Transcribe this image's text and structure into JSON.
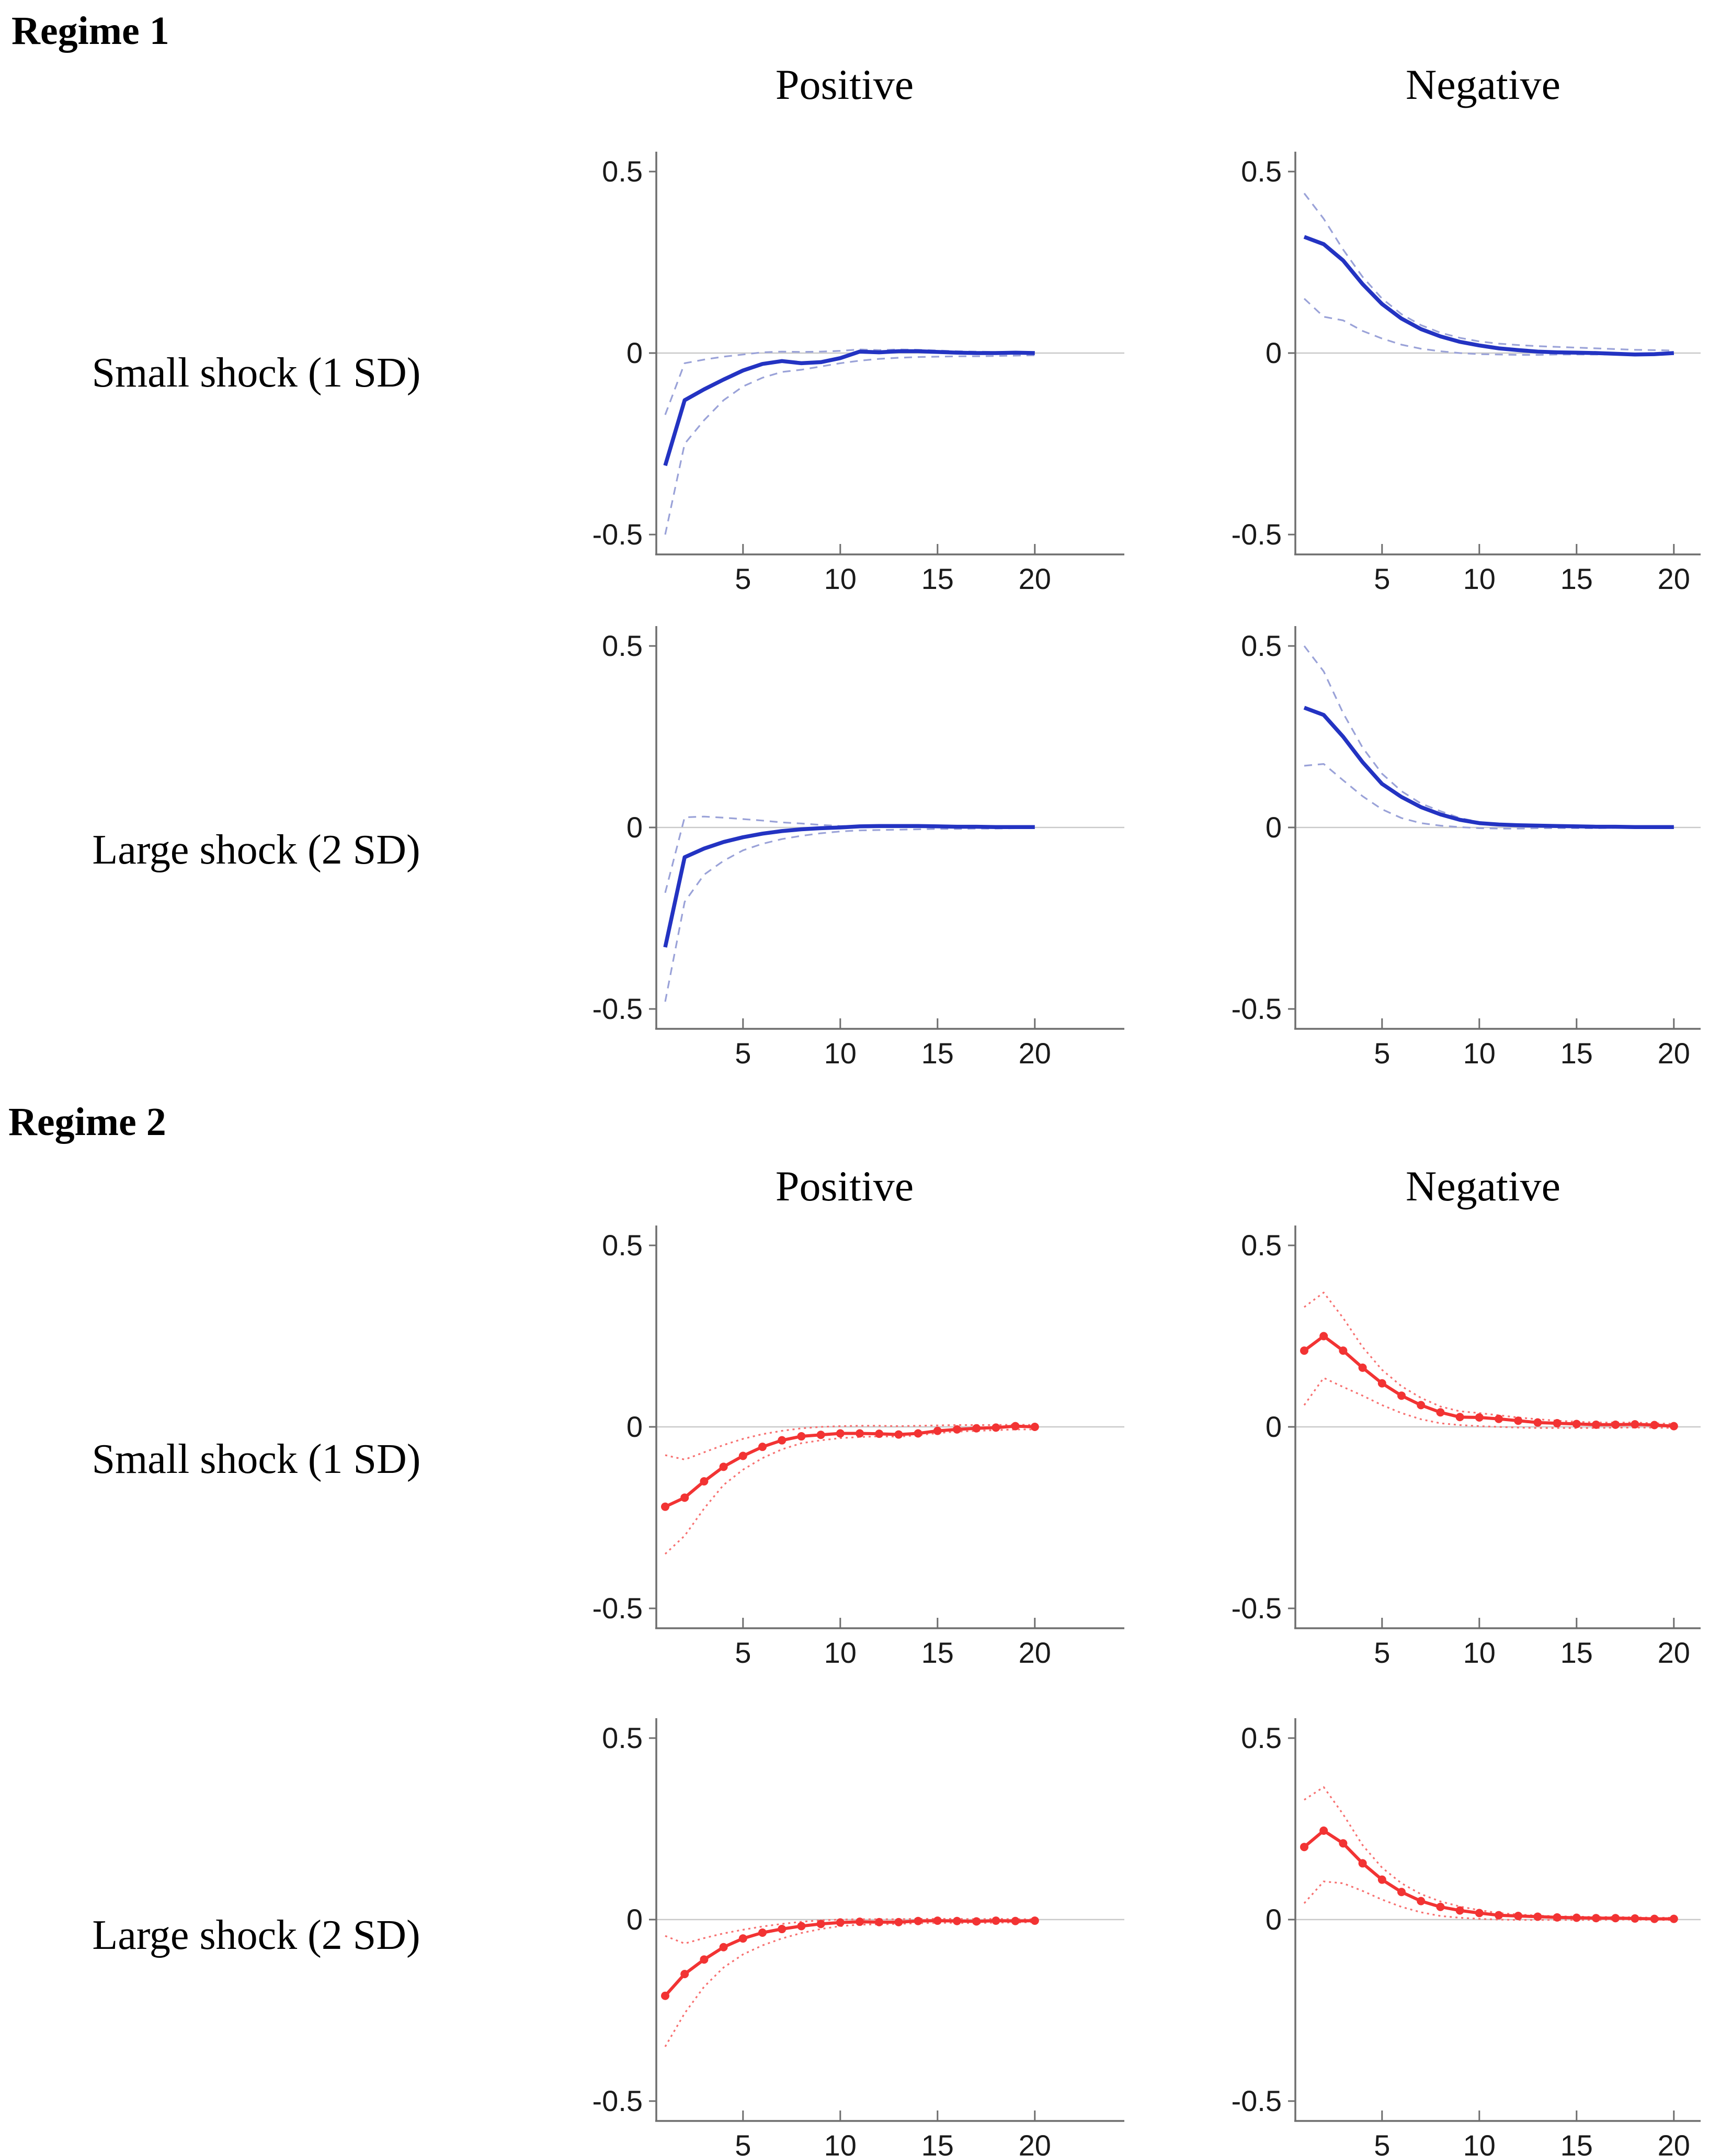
{
  "figure": {
    "sections": [
      {
        "label": "Regime 1"
      },
      {
        "label": "Regime 2"
      }
    ],
    "column_titles": {
      "positive": "Positive",
      "negative": "Negative"
    },
    "row_labels": {
      "small": "Small shock (1 SD)",
      "large": "Large shock (2 SD)"
    }
  },
  "colors": {
    "background": "#ffffff",
    "regime1_line": "#2333c2",
    "regime1_band": "#9aa2d8",
    "regime2_line": "#f23333",
    "regime2_band": "#f77070",
    "axis": "#6e6e6e",
    "zero_line": "#c9c9c9",
    "tick_text": "#1a1a1a",
    "text": "#000000"
  },
  "axes": {
    "ylim": [
      -0.55,
      0.55
    ],
    "xlim": [
      1,
      21.5
    ],
    "grid": "horizontal-zero-line-only",
    "legend": "none",
    "y_ticks": [
      {
        "v": 0.5,
        "label": "0.5"
      },
      {
        "v": 0,
        "label": "0"
      },
      {
        "v": -0.5,
        "label": "-0.5"
      }
    ],
    "x_ticks": [
      {
        "v": 5,
        "label": "5"
      },
      {
        "v": 10,
        "label": "10"
      },
      {
        "v": 15,
        "label": "15"
      },
      {
        "v": 20,
        "label": "20"
      }
    ]
  },
  "chart_data": [
    {
      "id": "regime1-small-positive",
      "type": "line",
      "regime": "Regime 1",
      "shock": "Small shock (1 SD)",
      "direction": "Positive",
      "palette": "regime1",
      "markers": false,
      "band_style": "dashed",
      "x": [
        1,
        2,
        3,
        4,
        5,
        6,
        7,
        8,
        9,
        10,
        11,
        12,
        13,
        14,
        15,
        16,
        17,
        18,
        19,
        20
      ],
      "series": [
        {
          "name": "impulse response",
          "role": "main",
          "values": [
            -0.31,
            -0.13,
            -0.1,
            -0.073,
            -0.048,
            -0.03,
            -0.022,
            -0.028,
            -0.025,
            -0.014,
            0.004,
            0.002,
            0.005,
            0.005,
            0.003,
            0.001,
            0.0,
            0.0,
            0.001,
            0.0
          ]
        },
        {
          "name": "upper confidence band",
          "role": "band",
          "values": [
            -0.17,
            -0.028,
            -0.018,
            -0.01,
            -0.004,
            0.002,
            0.004,
            0.003,
            0.004,
            0.006,
            0.01,
            0.008,
            0.01,
            0.009,
            0.007,
            0.005,
            0.004,
            0.003,
            0.003,
            0.002
          ]
        },
        {
          "name": "lower confidence band",
          "role": "band",
          "values": [
            -0.5,
            -0.25,
            -0.185,
            -0.13,
            -0.092,
            -0.068,
            -0.052,
            -0.046,
            -0.037,
            -0.028,
            -0.021,
            -0.016,
            -0.013,
            -0.011,
            -0.01,
            -0.009,
            -0.009,
            -0.008,
            -0.007,
            -0.006
          ]
        }
      ]
    },
    {
      "id": "regime1-small-negative",
      "type": "line",
      "regime": "Regime 1",
      "shock": "Small shock (1 SD)",
      "direction": "Negative",
      "palette": "regime1",
      "markers": false,
      "band_style": "dashed",
      "x": [
        1,
        2,
        3,
        4,
        5,
        6,
        7,
        8,
        9,
        10,
        11,
        12,
        13,
        14,
        15,
        16,
        17,
        18,
        19,
        20
      ],
      "series": [
        {
          "name": "impulse response",
          "role": "main",
          "values": [
            0.32,
            0.3,
            0.255,
            0.19,
            0.135,
            0.095,
            0.066,
            0.046,
            0.031,
            0.021,
            0.013,
            0.008,
            0.004,
            0.002,
            0.001,
            0.0,
            -0.002,
            -0.004,
            -0.003,
            0.0
          ]
        },
        {
          "name": "upper confidence band",
          "role": "band",
          "values": [
            0.44,
            0.37,
            0.285,
            0.21,
            0.15,
            0.107,
            0.077,
            0.056,
            0.042,
            0.032,
            0.026,
            0.022,
            0.019,
            0.017,
            0.015,
            0.013,
            0.011,
            0.009,
            0.008,
            0.007
          ]
        },
        {
          "name": "lower confidence band",
          "role": "band",
          "values": [
            0.15,
            0.1,
            0.09,
            0.061,
            0.04,
            0.023,
            0.012,
            0.005,
            0.0,
            -0.003,
            -0.004,
            -0.005,
            -0.005,
            -0.004,
            -0.004,
            -0.004,
            -0.004,
            -0.005,
            -0.004,
            -0.002
          ]
        }
      ]
    },
    {
      "id": "regime1-large-positive",
      "type": "line",
      "regime": "Regime 1",
      "shock": "Large shock (2 SD)",
      "direction": "Positive",
      "palette": "regime1",
      "markers": false,
      "band_style": "dashed",
      "x": [
        1,
        2,
        3,
        4,
        5,
        6,
        7,
        8,
        9,
        10,
        11,
        12,
        13,
        14,
        15,
        16,
        17,
        18,
        19,
        20
      ],
      "series": [
        {
          "name": "impulse response",
          "role": "main",
          "values": [
            -0.33,
            -0.082,
            -0.058,
            -0.04,
            -0.027,
            -0.017,
            -0.01,
            -0.005,
            -0.002,
            0.0,
            0.003,
            0.004,
            0.004,
            0.004,
            0.003,
            0.002,
            0.002,
            0.001,
            0.001,
            0.001
          ]
        },
        {
          "name": "upper confidence band",
          "role": "band",
          "values": [
            -0.18,
            0.028,
            0.03,
            0.027,
            0.023,
            0.019,
            0.014,
            0.011,
            0.007,
            0.004,
            0.004,
            0.003,
            0.003,
            0.003,
            0.002,
            0.002,
            0.002,
            0.001,
            0.001,
            0.001
          ]
        },
        {
          "name": "lower confidence band",
          "role": "band",
          "values": [
            -0.48,
            -0.205,
            -0.13,
            -0.092,
            -0.063,
            -0.045,
            -0.032,
            -0.023,
            -0.016,
            -0.011,
            -0.008,
            -0.007,
            -0.006,
            -0.005,
            -0.004,
            -0.004,
            -0.003,
            -0.003,
            -0.002,
            -0.002
          ]
        }
      ]
    },
    {
      "id": "regime1-large-negative",
      "type": "line",
      "regime": "Regime 1",
      "shock": "Large shock (2 SD)",
      "direction": "Negative",
      "palette": "regime1",
      "markers": false,
      "band_style": "dashed",
      "x": [
        1,
        2,
        3,
        4,
        5,
        6,
        7,
        8,
        9,
        10,
        11,
        12,
        13,
        14,
        15,
        16,
        17,
        18,
        19,
        20
      ],
      "series": [
        {
          "name": "impulse response",
          "role": "main",
          "values": [
            0.33,
            0.31,
            0.25,
            0.18,
            0.12,
            0.084,
            0.056,
            0.036,
            0.021,
            0.012,
            0.008,
            0.006,
            0.005,
            0.004,
            0.003,
            0.002,
            0.002,
            0.001,
            0.001,
            0.001
          ]
        },
        {
          "name": "upper confidence band",
          "role": "band",
          "values": [
            0.5,
            0.43,
            0.315,
            0.22,
            0.148,
            0.1,
            0.066,
            0.045,
            0.026,
            0.015,
            0.01,
            0.008,
            0.006,
            0.005,
            0.004,
            0.004,
            0.003,
            0.003,
            0.002,
            0.002
          ]
        },
        {
          "name": "lower confidence band",
          "role": "band",
          "values": [
            0.17,
            0.175,
            0.13,
            0.086,
            0.05,
            0.026,
            0.012,
            0.005,
            0.001,
            -0.002,
            -0.003,
            -0.003,
            -0.002,
            -0.002,
            -0.002,
            -0.002,
            -0.001,
            -0.001,
            -0.001,
            -0.001
          ]
        }
      ]
    },
    {
      "id": "regime2-small-positive",
      "type": "line",
      "regime": "Regime 2",
      "shock": "Small shock (1 SD)",
      "direction": "Positive",
      "palette": "regime2",
      "markers": true,
      "band_style": "dotted",
      "x": [
        1,
        2,
        3,
        4,
        5,
        6,
        7,
        8,
        9,
        10,
        11,
        12,
        13,
        14,
        15,
        16,
        17,
        18,
        19,
        20
      ],
      "series": [
        {
          "name": "impulse response",
          "role": "main",
          "values": [
            -0.22,
            -0.195,
            -0.15,
            -0.11,
            -0.08,
            -0.055,
            -0.037,
            -0.026,
            -0.022,
            -0.018,
            -0.018,
            -0.019,
            -0.021,
            -0.018,
            -0.011,
            -0.007,
            -0.004,
            -0.002,
            0.002,
            0.0
          ]
        },
        {
          "name": "upper confidence band",
          "role": "band",
          "values": [
            -0.078,
            -0.09,
            -0.07,
            -0.05,
            -0.033,
            -0.02,
            -0.011,
            -0.004,
            0.0,
            0.002,
            0.003,
            0.003,
            0.002,
            0.003,
            0.004,
            0.005,
            0.005,
            0.005,
            0.006,
            0.005
          ]
        },
        {
          "name": "lower confidence band",
          "role": "band",
          "values": [
            -0.35,
            -0.3,
            -0.225,
            -0.16,
            -0.118,
            -0.086,
            -0.062,
            -0.045,
            -0.037,
            -0.031,
            -0.028,
            -0.026,
            -0.027,
            -0.023,
            -0.017,
            -0.013,
            -0.011,
            -0.009,
            -0.007,
            -0.007
          ]
        }
      ]
    },
    {
      "id": "regime2-small-negative",
      "type": "line",
      "regime": "Regime 2",
      "shock": "Small shock (1 SD)",
      "direction": "Negative",
      "palette": "regime2",
      "markers": true,
      "band_style": "dotted",
      "x": [
        1,
        2,
        3,
        4,
        5,
        6,
        7,
        8,
        9,
        10,
        11,
        12,
        13,
        14,
        15,
        16,
        17,
        18,
        19,
        20
      ],
      "series": [
        {
          "name": "impulse response",
          "role": "main",
          "values": [
            0.21,
            0.25,
            0.21,
            0.163,
            0.12,
            0.086,
            0.06,
            0.04,
            0.027,
            0.026,
            0.022,
            0.017,
            0.012,
            0.01,
            0.008,
            0.006,
            0.006,
            0.007,
            0.005,
            0.002
          ]
        },
        {
          "name": "upper confidence band",
          "role": "band",
          "values": [
            0.33,
            0.37,
            0.3,
            0.22,
            0.157,
            0.112,
            0.08,
            0.056,
            0.043,
            0.038,
            0.032,
            0.026,
            0.021,
            0.017,
            0.014,
            0.012,
            0.012,
            0.012,
            0.01,
            0.008
          ]
        },
        {
          "name": "lower confidence band",
          "role": "band",
          "values": [
            0.06,
            0.135,
            0.11,
            0.086,
            0.06,
            0.038,
            0.021,
            0.01,
            0.005,
            0.002,
            0.0,
            -0.002,
            -0.003,
            -0.003,
            -0.003,
            -0.003,
            -0.002,
            -0.002,
            -0.002,
            -0.003
          ]
        }
      ]
    },
    {
      "id": "regime2-large-positive",
      "type": "line",
      "regime": "Regime 2",
      "shock": "Large shock (2 SD)",
      "direction": "Positive",
      "palette": "regime2",
      "markers": true,
      "band_style": "dotted",
      "x": [
        1,
        2,
        3,
        4,
        5,
        6,
        7,
        8,
        9,
        10,
        11,
        12,
        13,
        14,
        15,
        16,
        17,
        18,
        19,
        20
      ],
      "series": [
        {
          "name": "impulse response",
          "role": "main",
          "values": [
            -0.21,
            -0.15,
            -0.11,
            -0.076,
            -0.052,
            -0.036,
            -0.026,
            -0.018,
            -0.012,
            -0.008,
            -0.006,
            -0.007,
            -0.007,
            -0.004,
            -0.003,
            -0.004,
            -0.005,
            -0.003,
            -0.004,
            -0.003
          ]
        },
        {
          "name": "upper confidence band",
          "role": "band",
          "values": [
            -0.045,
            -0.066,
            -0.051,
            -0.038,
            -0.028,
            -0.019,
            -0.012,
            -0.006,
            -0.002,
            0.0,
            0.001,
            0.001,
            0.001,
            0.002,
            0.002,
            0.002,
            0.001,
            0.002,
            0.001,
            0.001
          ]
        },
        {
          "name": "lower confidence band",
          "role": "band",
          "values": [
            -0.35,
            -0.258,
            -0.185,
            -0.132,
            -0.096,
            -0.071,
            -0.052,
            -0.037,
            -0.026,
            -0.018,
            -0.014,
            -0.013,
            -0.012,
            -0.01,
            -0.009,
            -0.009,
            -0.01,
            -0.008,
            -0.008,
            -0.007
          ]
        }
      ]
    },
    {
      "id": "regime2-large-negative",
      "type": "line",
      "regime": "Regime 2",
      "shock": "Large shock (2 SD)",
      "direction": "Negative",
      "palette": "regime2",
      "markers": true,
      "band_style": "dotted",
      "x": [
        1,
        2,
        3,
        4,
        5,
        6,
        7,
        8,
        9,
        10,
        11,
        12,
        13,
        14,
        15,
        16,
        17,
        18,
        19,
        20
      ],
      "series": [
        {
          "name": "impulse response",
          "role": "main",
          "values": [
            0.2,
            0.245,
            0.21,
            0.155,
            0.11,
            0.076,
            0.051,
            0.035,
            0.025,
            0.018,
            0.012,
            0.01,
            0.008,
            0.006,
            0.005,
            0.004,
            0.004,
            0.003,
            0.002,
            0.002
          ]
        },
        {
          "name": "upper confidence band",
          "role": "band",
          "values": [
            0.33,
            0.365,
            0.29,
            0.205,
            0.143,
            0.1,
            0.07,
            0.05,
            0.036,
            0.026,
            0.018,
            0.014,
            0.011,
            0.009,
            0.008,
            0.007,
            0.007,
            0.006,
            0.005,
            0.005
          ]
        },
        {
          "name": "lower confidence band",
          "role": "band",
          "values": [
            0.045,
            0.105,
            0.1,
            0.079,
            0.055,
            0.035,
            0.02,
            0.01,
            0.005,
            0.002,
            0.0,
            -0.001,
            -0.001,
            -0.001,
            -0.001,
            -0.001,
            0.0,
            0.0,
            -0.001,
            -0.001
          ]
        }
      ]
    }
  ]
}
